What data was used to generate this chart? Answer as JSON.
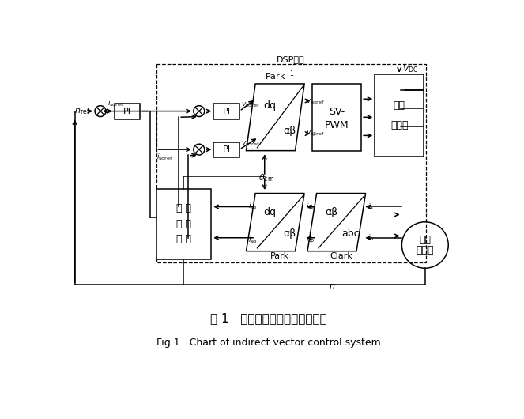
{
  "title_zh": "图 1   间接矢量控制系统结构框图",
  "title_en": "Fig.1   Chart of indirect vector control system",
  "background": "#ffffff",
  "fig_width": 6.63,
  "fig_height": 5.3,
  "dsp_label": "DSP处理",
  "park_inv_label": "Park⁻¹",
  "park_label": "Park",
  "clark_label": "Clark",
  "svpwm_label1": "SV-",
  "svpwm_label2": "PWM",
  "inv_label1": "三相",
  "inv_label2": "逆变器",
  "ecm_label1": "电 流",
  "ecm_label2": "计 算",
  "ecm_label3": "模 型",
  "motor_label1": "异步",
  "motor_label2": "电动机",
  "dq_str": "dq",
  "ab_str": "αβ",
  "abc_str": "abc"
}
